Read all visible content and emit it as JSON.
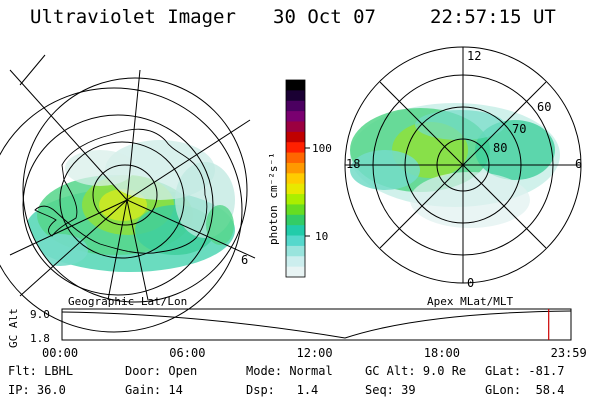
{
  "header": {
    "instrument": "Ultraviolet Imager",
    "date": "30 Oct 07",
    "time": "22:57:15 UT"
  },
  "left_panel": {
    "label": "Geographic Lat/Lon",
    "edge_label": "6"
  },
  "right_panel": {
    "label": "Apex MLat/MLT",
    "mlt_labels": [
      "12",
      "18",
      "6",
      "0"
    ],
    "mlat_labels": [
      "60",
      "70",
      "80"
    ]
  },
  "colorbar": {
    "units_label": "photon cm⁻²s⁻¹",
    "ticks": [
      "100",
      "10"
    ],
    "colors": [
      "#000000",
      "#1a0033",
      "#4b0060",
      "#7a0070",
      "#9b0040",
      "#c00000",
      "#ff2000",
      "#ff6600",
      "#ff9900",
      "#ffcc00",
      "#e8e800",
      "#aaee00",
      "#66dd22",
      "#33cc66",
      "#22ccaa",
      "#55d8cc",
      "#99e4dd",
      "#cceeee",
      "#e8f4f4"
    ]
  },
  "altitude_strip": {
    "ylabel": "GC Alt",
    "ymax_label": "9.0",
    "ymin_label": "1.8",
    "time_ticks": [
      "00:00",
      "06:00",
      "12:00",
      "18:00",
      "23:59"
    ],
    "current_hour": 22.95
  },
  "info": {
    "filter_label": "Flt:",
    "filter_value": "LBHL",
    "door_label": "Door:",
    "door_value": "Open",
    "mode_label": "Mode:",
    "mode_value": "Normal",
    "gcalt_label": "GC Alt:",
    "gcalt_value": "9.0 Re",
    "glat_label": "GLat:",
    "glat_value": "-81.7",
    "ip_label": "IP:",
    "ip_value": "36.0",
    "gain_label": "Gain:",
    "gain_value": "14",
    "dsp_label": "Dsp:",
    "dsp_value": "1.4",
    "seq_label": "Seq:",
    "seq_value": "39",
    "glon_label": "GLon:",
    "glon_value": "58.4"
  }
}
